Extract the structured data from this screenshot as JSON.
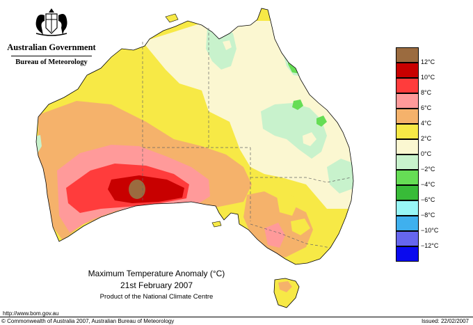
{
  "header": {
    "org_line1": "Australian Government",
    "org_line2": "Bureau of Meteorology"
  },
  "map": {
    "title": "Maximum Temperature Anomaly (°C)",
    "date": "21st February 2007",
    "product": "Product of the National Climate Centre",
    "region": "Australia"
  },
  "legend": {
    "swatches": [
      {
        "color": "#9b6b3f"
      },
      {
        "color": "#c80000"
      },
      {
        "color": "#ff3c3c"
      },
      {
        "color": "#ff9a9a"
      },
      {
        "color": "#f5b26b"
      },
      {
        "color": "#f7e946"
      },
      {
        "color": "#fbf7d1"
      },
      {
        "color": "#c8f2cc"
      },
      {
        "color": "#66dd55"
      },
      {
        "color": "#38bb38"
      },
      {
        "color": "#98f6f6"
      },
      {
        "color": "#3fb0ee"
      },
      {
        "color": "#6666ee"
      },
      {
        "color": "#0a0aee"
      }
    ],
    "labels": [
      "12°C",
      "10°C",
      "8°C",
      "6°C",
      "4°C",
      "2°C",
      "0°C",
      "−2°C",
      "−4°C",
      "−6°C",
      "−8°C",
      "−10°C",
      "−12°C"
    ]
  },
  "footer": {
    "url": "http://www.bom.gov.au",
    "copyright": "© Commonwealth of Australia 2007, Australian Bureau of Meteorology",
    "issued": "Issued: 22/02/2007"
  }
}
